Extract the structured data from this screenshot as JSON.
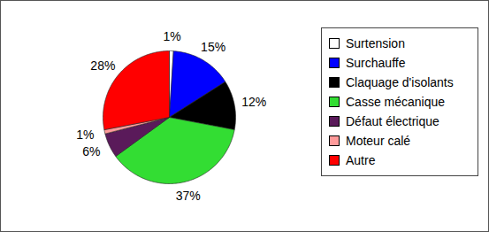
{
  "chart_data": {
    "type": "pie",
    "categories": [
      "Surtension",
      "Surchauffe",
      "Claquage d'isolants",
      "Casse mécanique",
      "Défaut électrique",
      "Moteur calé",
      "Autre"
    ],
    "values": [
      1,
      15,
      12,
      37,
      6,
      1,
      28
    ],
    "value_labels": [
      "1%",
      "15%",
      "12%",
      "37%",
      "6%",
      "1%",
      "28%"
    ],
    "colors": [
      "#ffffff",
      "#0000ff",
      "#000000",
      "#33dd33",
      "#5a1a5a",
      "#ff9a9a",
      "#ff0000"
    ],
    "data_labels": true,
    "legend": "right"
  }
}
